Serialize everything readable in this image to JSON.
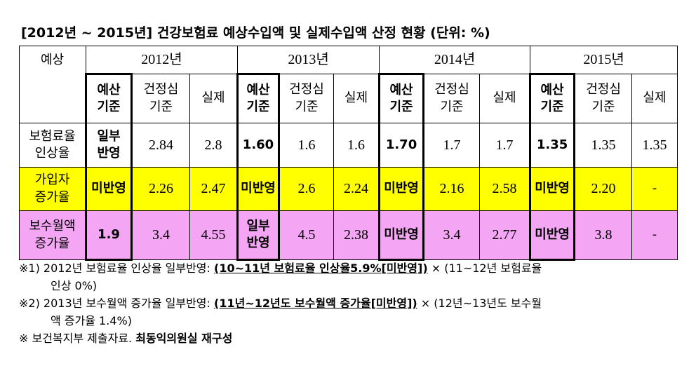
{
  "title": "[2012년 ~ 2015년] 건강보험료 예상수입액 및 실제수입액 산정 현황 (단위: %)",
  "table": {
    "corner": "예상",
    "years": [
      "2012년",
      "2013년",
      "2014년",
      "2015년"
    ],
    "subheaders": [
      "예산\n기준",
      "건정심\n기준",
      "실제"
    ],
    "rows": [
      {
        "label": "보험료율\n인상율",
        "cells": [
          "일부\n반영",
          "2.84",
          "2.8",
          "1.60",
          "1.6",
          "1.6",
          "1.70",
          "1.7",
          "1.7",
          "1.35",
          "1.35",
          "1.35"
        ]
      },
      {
        "label": "가입자\n증가율",
        "cells": [
          "미반영",
          "2.26",
          "2.47",
          "미반영",
          "2.6",
          "2.24",
          "미반영",
          "2.16",
          "2.58",
          "미반영",
          "2.20",
          "-"
        ]
      },
      {
        "label": "보수월액\n증가율",
        "cells": [
          "1.9",
          "3.4",
          "4.55",
          "일부\n반영",
          "4.5",
          "2.38",
          "미반영",
          "3.4",
          "2.77",
          "미반영",
          "3.8",
          "-"
        ]
      }
    ]
  },
  "notes": [
    {
      "prefix": "※1) 2012년 보험료율 인상율 일부반영: ",
      "emphasis": "(10~11년 보험료율 인상율5.9%[미반영])",
      "suffix": " × (11~12년 보험료율",
      "continuation": "인상 0%)"
    },
    {
      "prefix": "※2) 2013년 보수월액 증가율 일부반영: ",
      "emphasis": "(11년~12년도 보수월액 증가율[미반영])",
      "suffix": " × (12년~13년도 보수월",
      "continuation": "액 증가율 1.4%)"
    },
    {
      "prefix": "※ 보건복지부 제출자료. ",
      "emphasis": "최동익의원실 재구성"
    }
  ]
}
